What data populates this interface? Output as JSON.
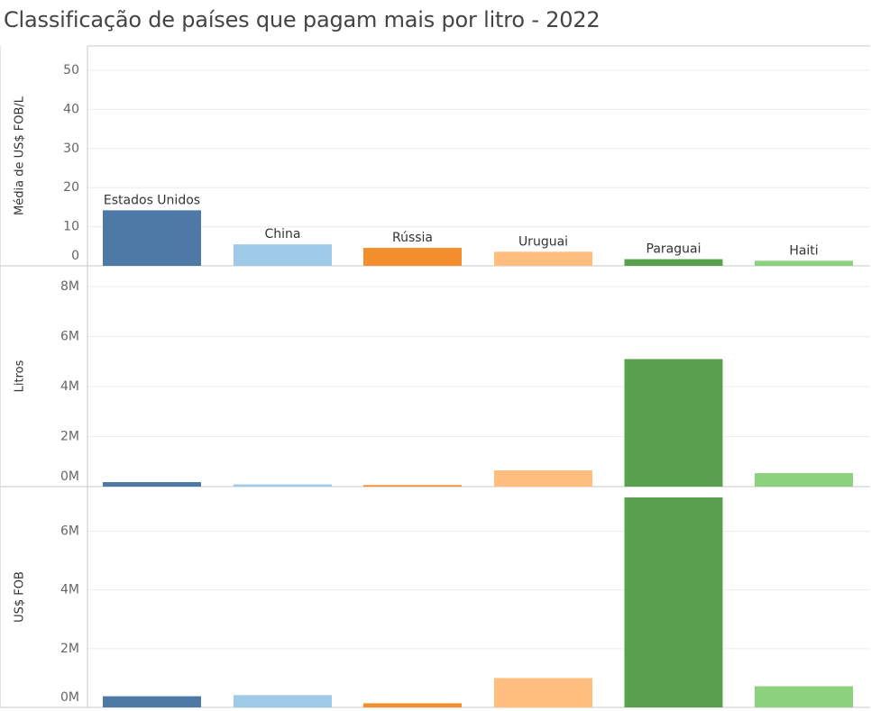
{
  "title": "Classificação de países que pagam mais por litro - 2022",
  "colors": {
    "Estados Unidos": "#4e79a7",
    "China": "#a0cbe8",
    "Rússia": "#f28e2b",
    "Uruguai": "#ffbe7d",
    "Paraguai": "#59a14f",
    "Haiti": "#8cd17d"
  },
  "chart_data": [
    {
      "type": "bar",
      "ylabel": "Média de US$ FOB/L",
      "categories": [
        "Estados Unidos",
        "China",
        "Rússia",
        "Uruguai",
        "Paraguai",
        "Haiti"
      ],
      "values": [
        14.2,
        5.5,
        4.6,
        3.6,
        1.7,
        1.3
      ],
      "yticks": [
        0,
        10,
        20,
        30,
        40,
        50
      ],
      "ytick_labels": [
        "0",
        "10",
        "20",
        "30",
        "40",
        "50"
      ],
      "ylim": [
        0,
        50
      ],
      "bar_labels": true,
      "grid": true
    },
    {
      "type": "bar",
      "ylabel": "Litros",
      "categories": [
        "Estados Unidos",
        "China",
        "Rússia",
        "Uruguai",
        "Paraguai",
        "Haiti"
      ],
      "values": [
        180000,
        90000,
        60000,
        650000,
        5100000,
        540000
      ],
      "yticks": [
        0,
        2000000,
        4000000,
        6000000,
        8000000
      ],
      "ytick_labels": [
        "0M",
        "2M",
        "4M",
        "6M",
        "8M"
      ],
      "ylim": [
        0,
        8000000
      ],
      "bar_labels": false,
      "grid": true
    },
    {
      "type": "bar",
      "ylabel": "US$ FOB",
      "categories": [
        "Estados Unidos",
        "China",
        "Rússia",
        "Uruguai",
        "Paraguai",
        "Haiti"
      ],
      "values": [
        380000,
        420000,
        140000,
        1000000,
        7150000,
        720000
      ],
      "yticks": [
        0,
        2000000,
        4000000,
        6000000
      ],
      "ytick_labels": [
        "0M",
        "2M",
        "4M",
        "6M"
      ],
      "ylim": [
        0,
        7150000
      ],
      "bar_labels": false,
      "grid": true
    }
  ]
}
